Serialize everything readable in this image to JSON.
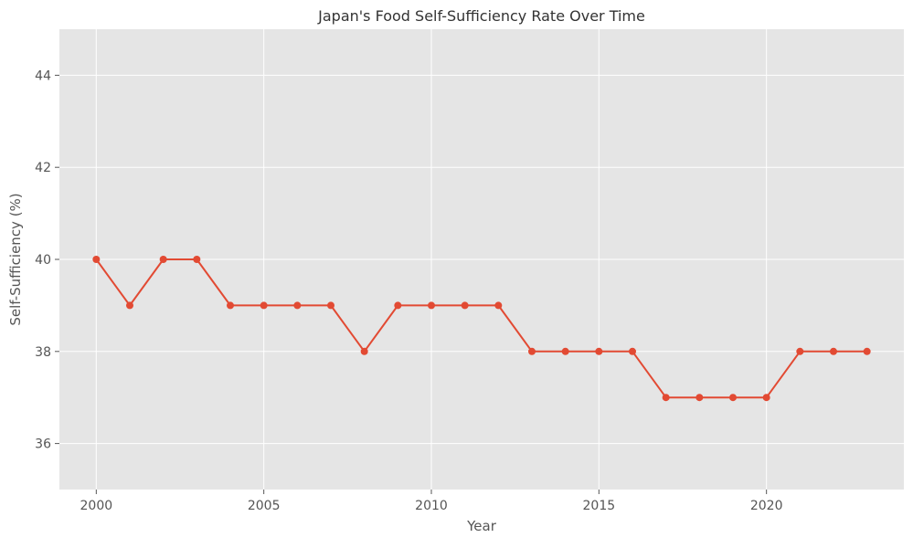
{
  "chart_data": {
    "type": "line",
    "title": "Japan's Food Self-Sufficiency Rate Over Time",
    "xlabel": "Year",
    "ylabel": "Self-Sufficiency (%)",
    "xlim": [
      1998.9,
      2024.1
    ],
    "ylim": [
      35,
      45
    ],
    "x_ticks": [
      2000,
      2005,
      2010,
      2015,
      2020
    ],
    "y_ticks": [
      36,
      38,
      40,
      42,
      44
    ],
    "grid": true,
    "series": [
      {
        "color": "#E24A33",
        "marker": "circle",
        "x": [
          2000,
          2001,
          2002,
          2003,
          2004,
          2005,
          2006,
          2007,
          2008,
          2009,
          2010,
          2011,
          2012,
          2013,
          2014,
          2015,
          2016,
          2017,
          2018,
          2019,
          2020,
          2021,
          2022,
          2023
        ],
        "y": [
          40,
          39,
          40,
          40,
          39,
          39,
          39,
          39,
          38,
          39,
          39,
          39,
          39,
          38,
          38,
          38,
          38,
          37,
          37,
          37,
          37,
          38,
          38,
          38
        ]
      }
    ]
  }
}
